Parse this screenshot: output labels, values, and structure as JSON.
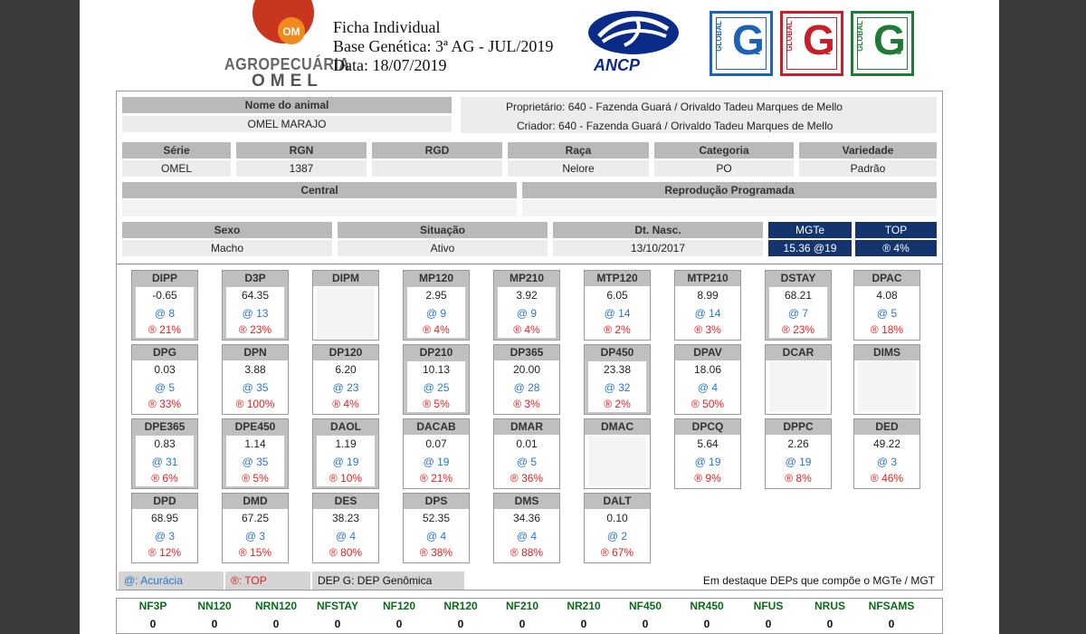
{
  "header": {
    "logo": {
      "circle_text": "OM",
      "word1": "AGROPECUÁRIA",
      "word2": "OMEL"
    },
    "title_lines": [
      "Ficha Individual",
      "Base Genética: 3ª AG - JUL/2019",
      "Data: 18/07/2019"
    ],
    "ancp_label": "ANCP",
    "badges": [
      {
        "side": "GLOBAL",
        "letter": "G",
        "num": "1",
        "color": "#1d63b3"
      },
      {
        "side": "GLOBAL",
        "letter": "G",
        "num": "2",
        "color": "#c8202a"
      },
      {
        "side": "GLOBAL",
        "letter": "G",
        "num": "3",
        "color": "#1e7a35"
      }
    ]
  },
  "animal": {
    "nome_label": "Nome do animal",
    "nome": "OMEL MARAJO",
    "proprietario": "Proprietário: 640 - Fazenda Guará / Orivaldo Tadeu Marques de Mello",
    "criador": "Criador: 640 - Fazenda Guará / Orivaldo Tadeu Marques de Mello",
    "serie_label": "Série",
    "serie": "OMEL",
    "rgn_label": "RGN",
    "rgn": "1387",
    "rgd_label": "RGD",
    "rgd": "",
    "raca_label": "Raça",
    "raca": "Nelore",
    "categoria_label": "Categoria",
    "categoria": "PO",
    "variedade_label": "Variedade",
    "variedade": "Padrão",
    "central_label": "Central",
    "central": "",
    "reproducao_label": "Reprodução Programada",
    "reproducao": "",
    "sexo_label": "Sexo",
    "sexo": "Macho",
    "situacao_label": "Situação",
    "situacao": "Ativo",
    "dtnasc_label": "Dt. Nasc.",
    "dtnasc": "13/10/2017",
    "mgte_label": "MGTe",
    "mgte": "15.36  @19",
    "top_label": "TOP",
    "top": "® 4%"
  },
  "deps": [
    [
      {
        "name": "DIPP",
        "value": "-0.65",
        "acc": "@ 8",
        "top": "® 21%",
        "hl": true
      },
      {
        "name": "D3P",
        "value": "64.35",
        "acc": "@ 13",
        "top": "® 23%",
        "hl": true
      },
      {
        "name": "DIPM",
        "value": "",
        "acc": "",
        "top": "",
        "hl": false
      },
      {
        "name": "MP120",
        "value": "2.95",
        "acc": "@ 9",
        "top": "® 4%",
        "hl": true
      },
      {
        "name": "MP210",
        "value": "3.92",
        "acc": "@ 9",
        "top": "® 4%",
        "hl": true
      },
      {
        "name": "MTP120",
        "value": "6.05",
        "acc": "@ 14",
        "top": "® 2%",
        "hl": false
      },
      {
        "name": "MTP210",
        "value": "8.99",
        "acc": "@ 14",
        "top": "® 3%",
        "hl": false
      },
      {
        "name": "DSTAY",
        "value": "68.21",
        "acc": "@ 7",
        "top": "® 23%",
        "hl": true
      },
      {
        "name": "DPAC",
        "value": "4.08",
        "acc": "@ 5",
        "top": "® 18%",
        "hl": false
      }
    ],
    [
      {
        "name": "DPG",
        "value": "0.03",
        "acc": "@ 5",
        "top": "® 33%",
        "hl": false
      },
      {
        "name": "DPN",
        "value": "3.88",
        "acc": "@ 35",
        "top": "® 100%",
        "hl": false
      },
      {
        "name": "DP120",
        "value": "6.20",
        "acc": "@ 23",
        "top": "® 4%",
        "hl": false
      },
      {
        "name": "DP210",
        "value": "10.13",
        "acc": "@ 25",
        "top": "® 5%",
        "hl": true
      },
      {
        "name": "DP365",
        "value": "20.00",
        "acc": "@ 28",
        "top": "® 3%",
        "hl": false
      },
      {
        "name": "DP450",
        "value": "23.38",
        "acc": "@ 32",
        "top": "® 2%",
        "hl": true
      },
      {
        "name": "DPAV",
        "value": "18.06",
        "acc": "@ 4",
        "top": "® 50%",
        "hl": false
      },
      {
        "name": "DCAR",
        "value": "",
        "acc": "",
        "top": "",
        "hl": false
      },
      {
        "name": "DIMS",
        "value": "",
        "acc": "",
        "top": "",
        "hl": false
      }
    ],
    [
      {
        "name": "DPE365",
        "value": "0.83",
        "acc": "@ 31",
        "top": "® 6%",
        "hl": true
      },
      {
        "name": "DPE450",
        "value": "1.14",
        "acc": "@ 35",
        "top": "® 5%",
        "hl": true
      },
      {
        "name": "DAOL",
        "value": "1.19",
        "acc": "@ 19",
        "top": "® 10%",
        "hl": true
      },
      {
        "name": "DACAB",
        "value": "0.07",
        "acc": "@ 19",
        "top": "® 21%",
        "hl": false
      },
      {
        "name": "DMAR",
        "value": "0.01",
        "acc": "@ 5",
        "top": "® 36%",
        "hl": false
      },
      {
        "name": "DMAC",
        "value": "",
        "acc": "",
        "top": "",
        "hl": false
      },
      {
        "name": "DPCQ",
        "value": "5.64",
        "acc": "@ 19",
        "top": "® 9%",
        "hl": false
      },
      {
        "name": "DPPC",
        "value": "2.26",
        "acc": "@ 19",
        "top": "® 8%",
        "hl": false
      },
      {
        "name": "DED",
        "value": "49.22",
        "acc": "@ 3",
        "top": "® 46%",
        "hl": false
      }
    ],
    [
      {
        "name": "DPD",
        "value": "68.95",
        "acc": "@ 3",
        "top": "® 12%",
        "hl": false
      },
      {
        "name": "DMD",
        "value": "67.25",
        "acc": "@ 3",
        "top": "® 15%",
        "hl": false
      },
      {
        "name": "DES",
        "value": "38.23",
        "acc": "@ 4",
        "top": "® 80%",
        "hl": false
      },
      {
        "name": "DPS",
        "value": "52.35",
        "acc": "@ 4",
        "top": "® 38%",
        "hl": false
      },
      {
        "name": "DMS",
        "value": "34.36",
        "acc": "@ 4",
        "top": "® 88%",
        "hl": false
      },
      {
        "name": "DALT",
        "value": "0.10",
        "acc": "@ 2",
        "top": "® 67%",
        "hl": false
      }
    ]
  ],
  "legend": {
    "acc": "@: Acurácia",
    "top": "®: TOP",
    "depg": "DEP G: DEP Genômica",
    "note": "Em destaque DEPs que compõe o MGTe / MGT"
  },
  "bottom": [
    {
      "label": "NF3P",
      "value": "0"
    },
    {
      "label": "NN120",
      "value": "0"
    },
    {
      "label": "NRN120",
      "value": "0"
    },
    {
      "label": "NFSTAY",
      "value": "0"
    },
    {
      "label": "NF120",
      "value": "0"
    },
    {
      "label": "NR120",
      "value": "0"
    },
    {
      "label": "NF210",
      "value": "0"
    },
    {
      "label": "NR210",
      "value": "0"
    },
    {
      "label": "NF450",
      "value": "0"
    },
    {
      "label": "NR450",
      "value": "0"
    },
    {
      "label": "NFUS",
      "value": "0"
    },
    {
      "label": "NRUS",
      "value": "0"
    },
    {
      "label": "NFSAMS",
      "value": "0"
    }
  ]
}
